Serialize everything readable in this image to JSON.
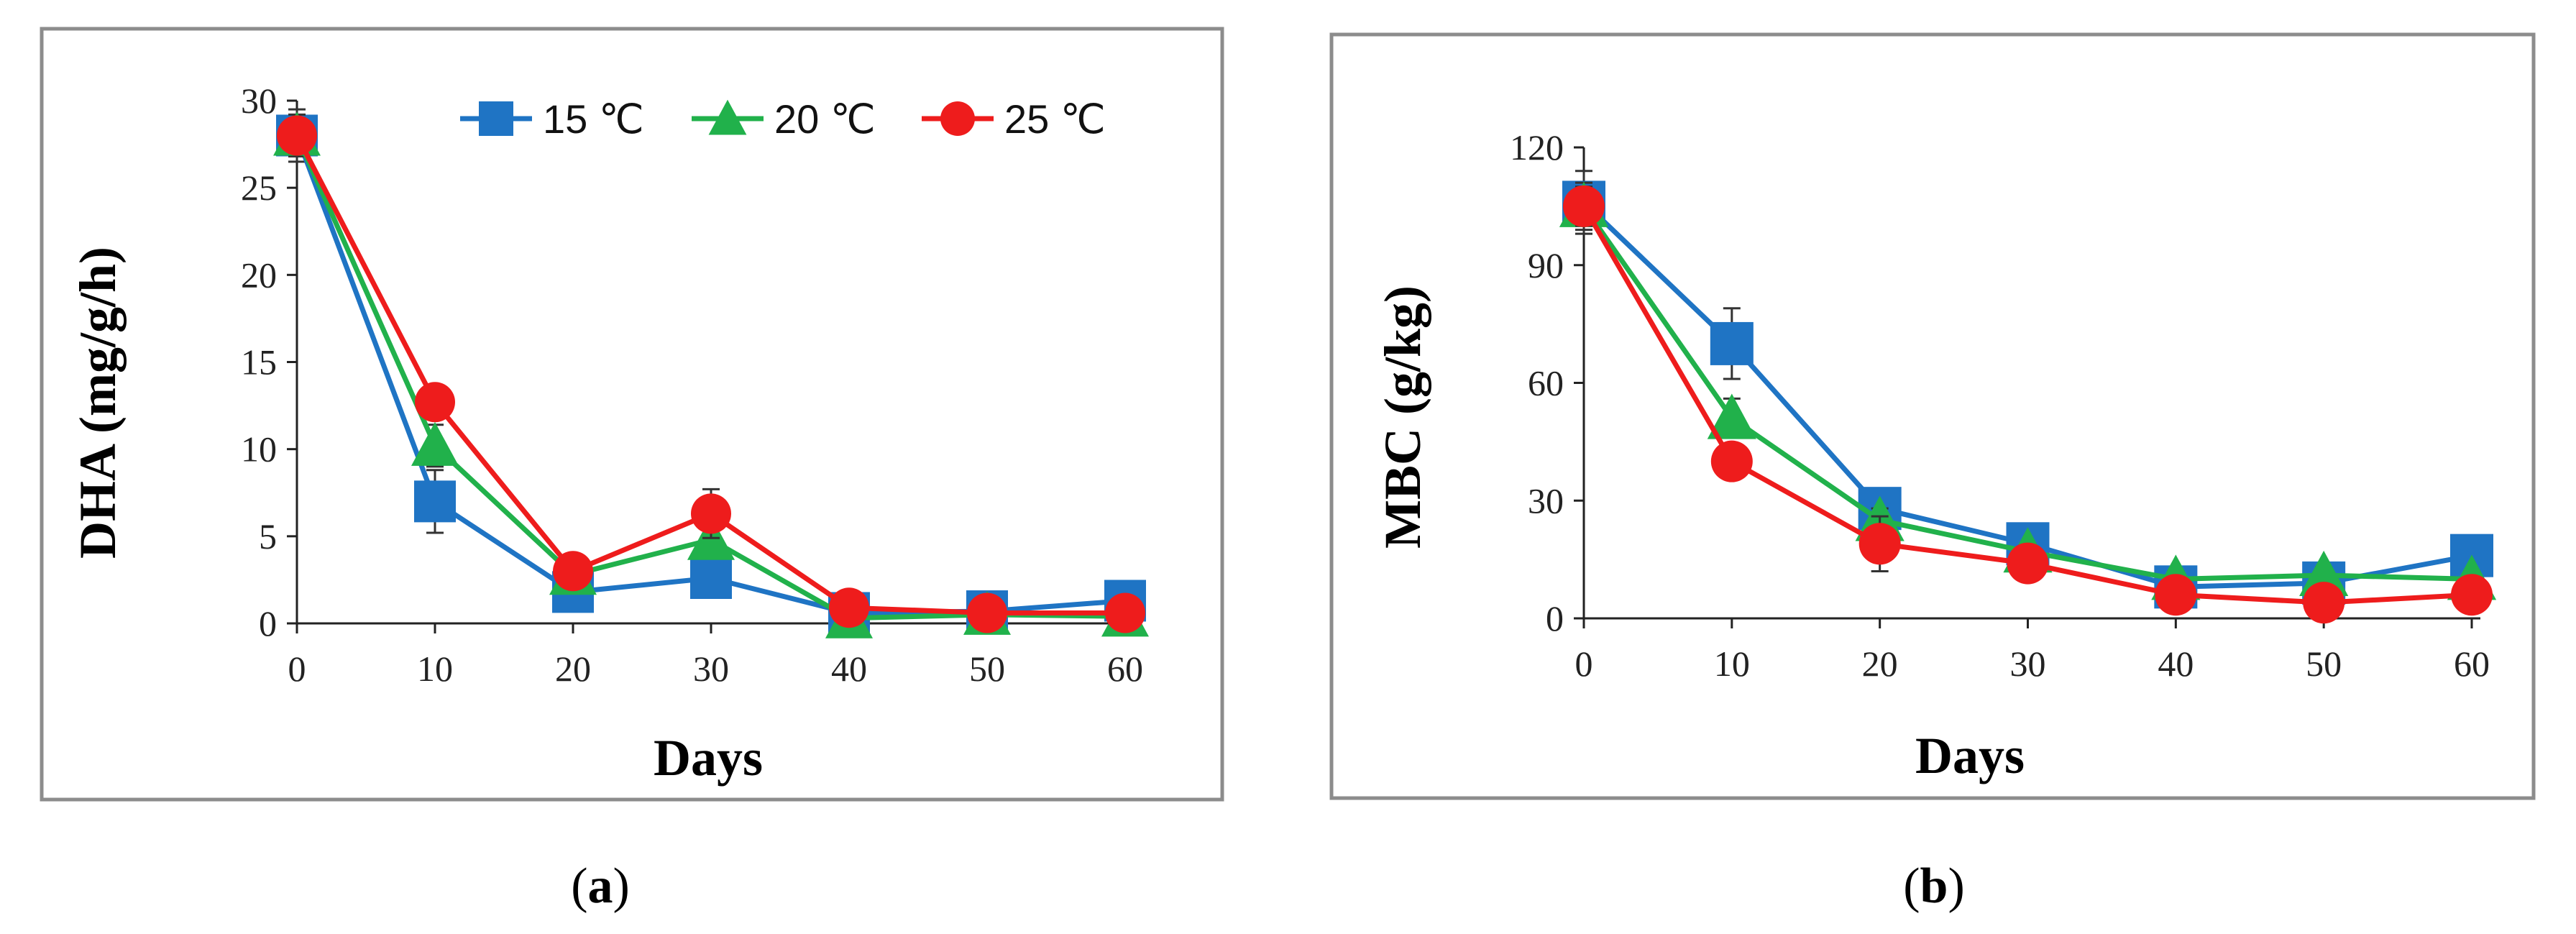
{
  "legend": [
    {
      "name": "15 ℃",
      "color": "#1f74c4",
      "marker": "square"
    },
    {
      "name": "20 ℃",
      "color": "#21b14b",
      "marker": "triangle"
    },
    {
      "name": "25 ℃",
      "color": "#ee1c1c",
      "marker": "circle"
    }
  ],
  "captions": [
    {
      "open": "(",
      "letter": "a",
      "close": ")"
    },
    {
      "open": "(",
      "letter": "b",
      "close": ")"
    }
  ],
  "chart_data": [
    {
      "type": "line",
      "title": "",
      "xlabel": "Days",
      "ylabel": "DHA (mg/g/h)",
      "x": [
        0,
        10,
        20,
        30,
        40,
        50,
        60
      ],
      "xlim": [
        0,
        60
      ],
      "ylim": [
        0,
        30
      ],
      "yticks": [
        0,
        5,
        10,
        15,
        20,
        25,
        30
      ],
      "xticks": [
        0,
        10,
        20,
        30,
        40,
        50,
        60
      ],
      "grid": false,
      "legend_position": "top-right",
      "series": [
        {
          "name": "15 ℃",
          "values": [
            28,
            7,
            1.8,
            2.6,
            0.6,
            0.7,
            1.3
          ],
          "errors": [
            1.5,
            1.8,
            0.4,
            0.6,
            0.2,
            0.2,
            0.3
          ]
        },
        {
          "name": "20 ℃",
          "values": [
            28,
            10.2,
            2.8,
            4.8,
            0.3,
            0.5,
            0.4
          ],
          "errors": [
            1.2,
            1.2,
            0.5,
            0.8,
            0.1,
            0.1,
            0.1
          ]
        },
        {
          "name": "25 ℃",
          "values": [
            28,
            12.7,
            3.0,
            6.3,
            0.9,
            0.6,
            0.6
          ],
          "errors": [
            1.0,
            0.8,
            0.5,
            1.4,
            0.2,
            0.1,
            0.1
          ]
        }
      ]
    },
    {
      "type": "line",
      "title": "",
      "xlabel": "Days",
      "ylabel": "MBC (g/kg)",
      "x": [
        0,
        10,
        20,
        30,
        40,
        50,
        60
      ],
      "xlim": [
        0,
        60
      ],
      "ylim": [
        0,
        120
      ],
      "yticks": [
        0,
        30,
        60,
        90,
        120
      ],
      "xticks": [
        0,
        10,
        20,
        30,
        40,
        50,
        60
      ],
      "grid": false,
      "legend_position": "none",
      "series": [
        {
          "name": "15 ℃",
          "values": [
            106,
            70,
            28,
            19,
            8,
            9,
            16
          ],
          "errors": [
            8,
            9,
            4,
            3,
            2,
            2,
            3
          ]
        },
        {
          "name": "20 ℃",
          "values": [
            105,
            51,
            25,
            17,
            10,
            11,
            10
          ],
          "errors": [
            6,
            5,
            3,
            2,
            2,
            2,
            2
          ]
        },
        {
          "name": "25 ℃",
          "values": [
            105,
            40,
            19,
            14,
            6,
            4,
            6
          ],
          "errors": [
            5,
            3,
            7,
            2,
            1,
            1,
            1
          ]
        }
      ]
    }
  ]
}
